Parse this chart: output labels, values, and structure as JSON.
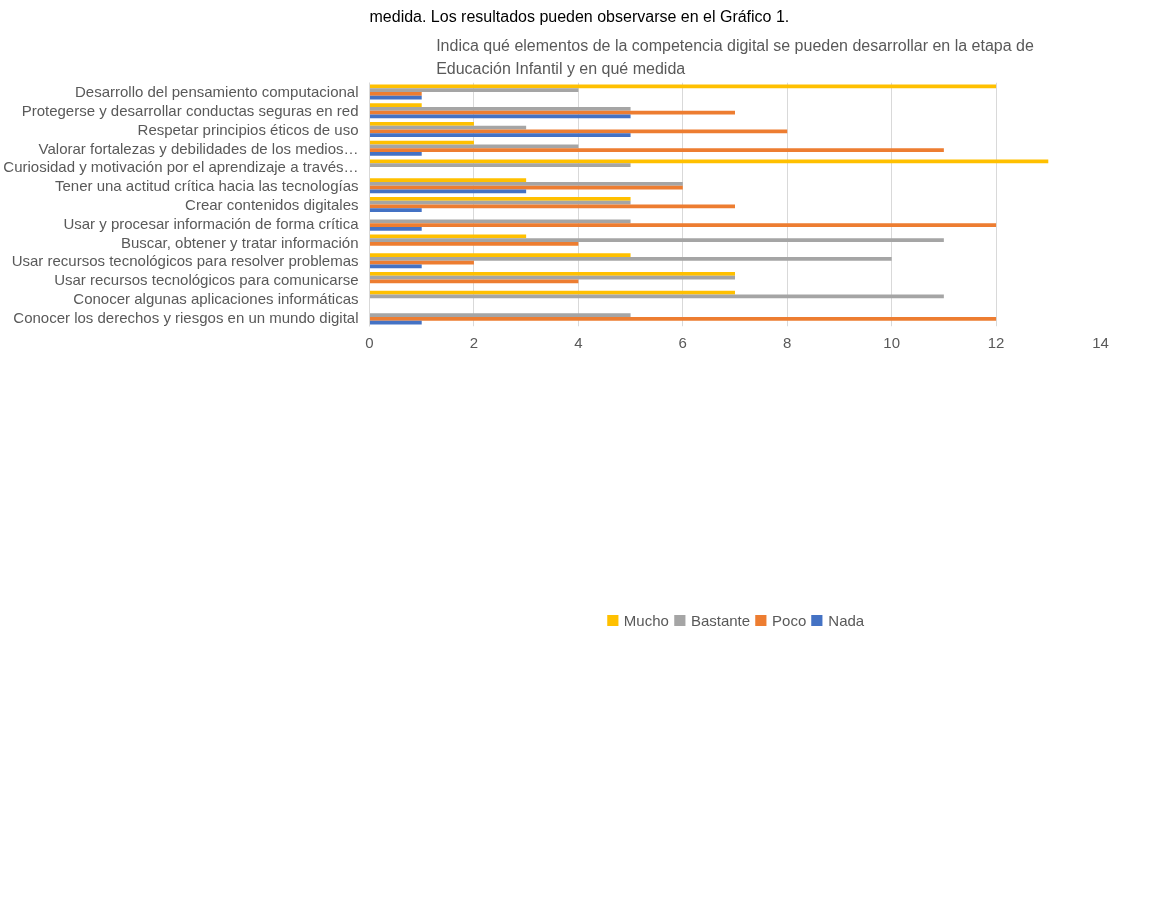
{
  "chart_data": {
    "type": "bar",
    "orientation": "horizontal",
    "title": "Indica qué elementos de la competencia digital se pueden desarrollar en la etapa de Educación Infantil y en qué medida",
    "annotations": [
      "medida. Los resultados pueden observarse en el Gráfico 1."
    ],
    "categories": [
      "Desarrollo del pensamiento computacional",
      "Protegerse y desarrollar conductas seguras en red",
      "Respetar principios éticos de uso",
      "Valorar fortalezas y debilidades de los medios…",
      "Curiosidad y motivación por el aprendizaje a través…",
      "Tener una actitud crítica hacia las tecnologías",
      "Crear contenidos digitales",
      "Usar y procesar información de forma crítica",
      "Buscar, obtener y tratar información",
      "Usar recursos tecnológicos para resolver problemas",
      "Usar recursos tecnológicos para comunicarse",
      "Conocer algunas aplicaciones informáticas",
      "Conocer los derechos y riesgos en un mundo digital"
    ],
    "series": [
      {
        "name": "Mucho",
        "color": "#ffc000",
        "values": [
          12,
          1,
          2,
          2,
          13,
          3,
          5,
          0,
          3,
          5,
          7,
          7,
          0
        ]
      },
      {
        "name": "Bastante",
        "color": "#a5a5a5",
        "values": [
          4,
          5,
          3,
          4,
          5,
          6,
          5,
          5,
          11,
          10,
          7,
          11,
          5
        ]
      },
      {
        "name": "Poco",
        "color": "#ed7d31",
        "values": [
          1,
          7,
          8,
          11,
          0,
          6,
          7,
          12,
          4,
          2,
          4,
          0,
          12
        ]
      },
      {
        "name": "Nada",
        "color": "#4472c4",
        "values": [
          1,
          5,
          5,
          1,
          0,
          3,
          1,
          1,
          0,
          1,
          0,
          0,
          1
        ]
      }
    ],
    "xlim": [
      0,
      14
    ],
    "xticks": [
      0,
      2,
      4,
      6,
      8,
      10,
      12,
      14
    ],
    "grid": "x",
    "legend": "bottom"
  }
}
